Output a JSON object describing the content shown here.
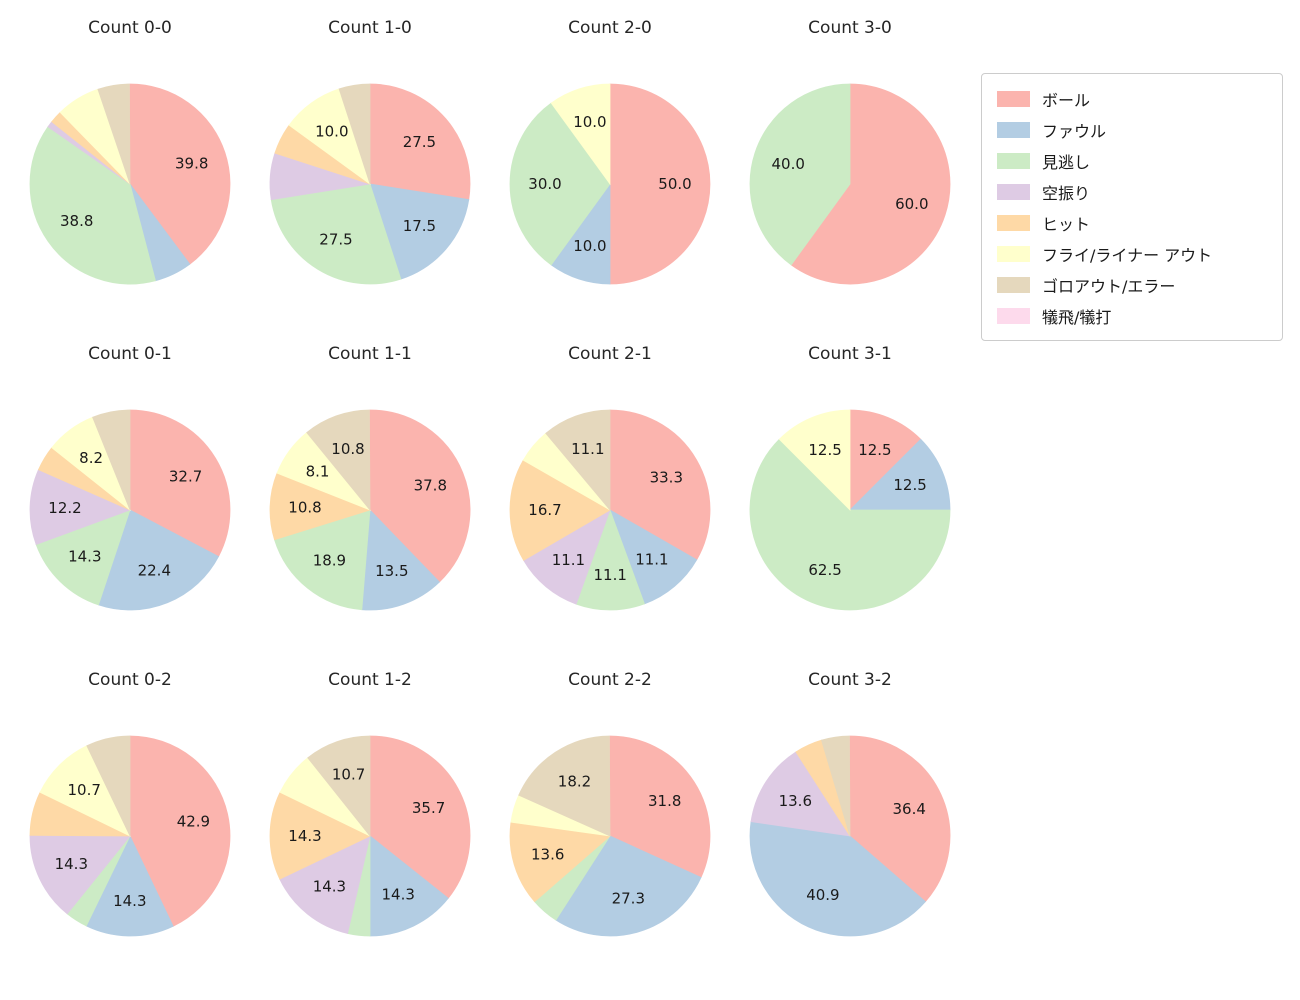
{
  "page": {
    "background": "#ffffff"
  },
  "legend": {
    "items": [
      {
        "label": "ボール",
        "color": "#fbb4ae"
      },
      {
        "label": "ファウル",
        "color": "#b3cde3"
      },
      {
        "label": "見逃し",
        "color": "#ccebc5"
      },
      {
        "label": "空振り",
        "color": "#decbe4"
      },
      {
        "label": "ヒット",
        "color": "#fed9a6"
      },
      {
        "label": "フライ/ライナー アウト",
        "color": "#ffffcc"
      },
      {
        "label": "ゴロアウト/エラー",
        "color": "#e5d8bd"
      },
      {
        "label": "犠飛/犠打",
        "color": "#fddaec"
      }
    ]
  },
  "chart_data": {
    "type": "pie",
    "start_angle": "top",
    "direction": "clockwise",
    "legend_position": "upper right",
    "label_color": "#1a1a1a",
    "categories": [
      "ボール",
      "ファウル",
      "見逃し",
      "空振り",
      "ヒット",
      "フライ/ライナー アウト",
      "ゴロアウト/エラー",
      "犠飛/犠打"
    ],
    "colors": [
      "#fbb4ae",
      "#b3cde3",
      "#ccebc5",
      "#decbe4",
      "#fed9a6",
      "#ffffcc",
      "#e5d8bd",
      "#fddaec"
    ],
    "charts": [
      {
        "title": "Count 0-0",
        "slices": [
          {
            "category": "ボール",
            "pct": 39.8,
            "labeled": true
          },
          {
            "category": "ファウル",
            "pct": 6.1,
            "labeled": false
          },
          {
            "category": "見逃し",
            "pct": 38.8,
            "labeled": true
          },
          {
            "category": "空振り",
            "pct": 1.0,
            "labeled": false
          },
          {
            "category": "ヒット",
            "pct": 2.0,
            "labeled": false
          },
          {
            "category": "フライ/ライナー アウト",
            "pct": 7.1,
            "labeled": false
          },
          {
            "category": "ゴロアウト/エラー",
            "pct": 5.1,
            "labeled": false
          }
        ]
      },
      {
        "title": "Count 1-0",
        "slices": [
          {
            "category": "ボール",
            "pct": 27.5,
            "labeled": true
          },
          {
            "category": "ファウル",
            "pct": 17.5,
            "labeled": true
          },
          {
            "category": "見逃し",
            "pct": 27.5,
            "labeled": true
          },
          {
            "category": "空振り",
            "pct": 7.5,
            "labeled": false
          },
          {
            "category": "ヒット",
            "pct": 5.0,
            "labeled": false
          },
          {
            "category": "フライ/ライナー アウト",
            "pct": 10.0,
            "labeled": true
          },
          {
            "category": "ゴロアウト/エラー",
            "pct": 5.0,
            "labeled": false
          }
        ]
      },
      {
        "title": "Count 2-0",
        "slices": [
          {
            "category": "ボール",
            "pct": 50.0,
            "labeled": true
          },
          {
            "category": "ファウル",
            "pct": 10.0,
            "labeled": true
          },
          {
            "category": "見逃し",
            "pct": 30.0,
            "labeled": true
          },
          {
            "category": "フライ/ライナー アウト",
            "pct": 10.0,
            "labeled": true
          }
        ]
      },
      {
        "title": "Count 3-0",
        "slices": [
          {
            "category": "ボール",
            "pct": 60.0,
            "labeled": true
          },
          {
            "category": "見逃し",
            "pct": 40.0,
            "labeled": true
          }
        ]
      },
      {
        "title": "Count 0-1",
        "slices": [
          {
            "category": "ボール",
            "pct": 32.7,
            "labeled": true
          },
          {
            "category": "ファウル",
            "pct": 22.4,
            "labeled": true
          },
          {
            "category": "見逃し",
            "pct": 14.3,
            "labeled": true
          },
          {
            "category": "空振り",
            "pct": 12.2,
            "labeled": true
          },
          {
            "category": "ヒット",
            "pct": 4.1,
            "labeled": false
          },
          {
            "category": "フライ/ライナー アウト",
            "pct": 8.2,
            "labeled": true
          },
          {
            "category": "ゴロアウト/エラー",
            "pct": 6.1,
            "labeled": false
          }
        ]
      },
      {
        "title": "Count 1-1",
        "slices": [
          {
            "category": "ボール",
            "pct": 37.8,
            "labeled": true
          },
          {
            "category": "ファウル",
            "pct": 13.5,
            "labeled": true
          },
          {
            "category": "見逃し",
            "pct": 18.9,
            "labeled": true
          },
          {
            "category": "ヒット",
            "pct": 10.8,
            "labeled": true
          },
          {
            "category": "フライ/ライナー アウト",
            "pct": 8.1,
            "labeled": true
          },
          {
            "category": "ゴロアウト/エラー",
            "pct": 10.8,
            "labeled": true
          }
        ]
      },
      {
        "title": "Count 2-1",
        "slices": [
          {
            "category": "ボール",
            "pct": 33.3,
            "labeled": true
          },
          {
            "category": "ファウル",
            "pct": 11.1,
            "labeled": true
          },
          {
            "category": "見逃し",
            "pct": 11.1,
            "labeled": true
          },
          {
            "category": "空振り",
            "pct": 11.1,
            "labeled": true
          },
          {
            "category": "ヒット",
            "pct": 16.7,
            "labeled": true
          },
          {
            "category": "フライ/ライナー アウト",
            "pct": 5.6,
            "labeled": false
          },
          {
            "category": "ゴロアウト/エラー",
            "pct": 11.1,
            "labeled": true
          }
        ]
      },
      {
        "title": "Count 3-1",
        "slices": [
          {
            "category": "ボール",
            "pct": 12.5,
            "labeled": true
          },
          {
            "category": "ファウル",
            "pct": 12.5,
            "labeled": true
          },
          {
            "category": "見逃し",
            "pct": 62.5,
            "labeled": true
          },
          {
            "category": "フライ/ライナー アウト",
            "pct": 12.5,
            "labeled": true
          }
        ]
      },
      {
        "title": "Count 0-2",
        "slices": [
          {
            "category": "ボール",
            "pct": 42.9,
            "labeled": true
          },
          {
            "category": "ファウル",
            "pct": 14.3,
            "labeled": true
          },
          {
            "category": "見逃し",
            "pct": 3.6,
            "labeled": false
          },
          {
            "category": "空振り",
            "pct": 14.3,
            "labeled": true
          },
          {
            "category": "ヒット",
            "pct": 7.1,
            "labeled": false
          },
          {
            "category": "フライ/ライナー アウト",
            "pct": 10.7,
            "labeled": true
          },
          {
            "category": "ゴロアウト/エラー",
            "pct": 7.1,
            "labeled": false
          }
        ]
      },
      {
        "title": "Count 1-2",
        "slices": [
          {
            "category": "ボール",
            "pct": 35.7,
            "labeled": true
          },
          {
            "category": "ファウル",
            "pct": 14.3,
            "labeled": true
          },
          {
            "category": "見逃し",
            "pct": 3.6,
            "labeled": false
          },
          {
            "category": "空振り",
            "pct": 14.3,
            "labeled": true
          },
          {
            "category": "ヒット",
            "pct": 14.3,
            "labeled": true
          },
          {
            "category": "フライ/ライナー アウト",
            "pct": 7.1,
            "labeled": false
          },
          {
            "category": "ゴロアウト/エラー",
            "pct": 10.7,
            "labeled": true
          }
        ]
      },
      {
        "title": "Count 2-2",
        "slices": [
          {
            "category": "ボール",
            "pct": 31.8,
            "labeled": true
          },
          {
            "category": "ファウル",
            "pct": 27.3,
            "labeled": true
          },
          {
            "category": "見逃し",
            "pct": 4.5,
            "labeled": false
          },
          {
            "category": "ヒット",
            "pct": 13.6,
            "labeled": true
          },
          {
            "category": "フライ/ライナー アウト",
            "pct": 4.5,
            "labeled": false
          },
          {
            "category": "ゴロアウト/エラー",
            "pct": 18.2,
            "labeled": true
          }
        ]
      },
      {
        "title": "Count 3-2",
        "slices": [
          {
            "category": "ボール",
            "pct": 36.4,
            "labeled": true
          },
          {
            "category": "ファウル",
            "pct": 40.9,
            "labeled": true
          },
          {
            "category": "空振り",
            "pct": 13.6,
            "labeled": true
          },
          {
            "category": "ヒット",
            "pct": 4.5,
            "labeled": false
          },
          {
            "category": "ゴロアウト/エラー",
            "pct": 4.5,
            "labeled": false
          }
        ]
      }
    ]
  }
}
